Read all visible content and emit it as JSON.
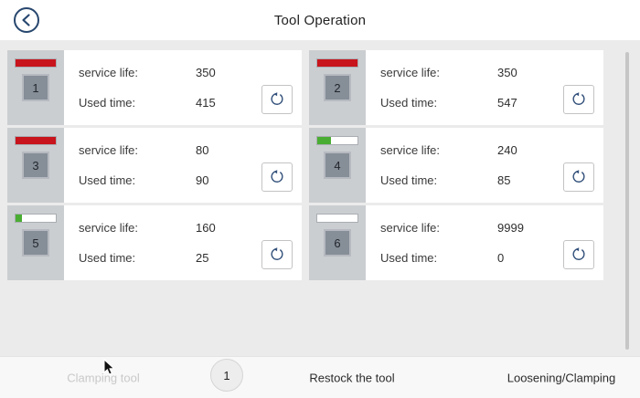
{
  "header": {
    "title": "Tool Operation"
  },
  "icons": {
    "back": "chevron-left-circle",
    "reset": "counterclockwise-reset-arrow",
    "cursor": "mouse-pointer-arrow"
  },
  "labels": {
    "service_life": "service life:",
    "used_time": "Used time:"
  },
  "cards": [
    {
      "number": "1",
      "service_life": "350",
      "used_time": "415",
      "bar_percent": 100,
      "bar_color": "#c8141c"
    },
    {
      "number": "2",
      "service_life": "350",
      "used_time": "547",
      "bar_percent": 100,
      "bar_color": "#c8141c"
    },
    {
      "number": "3",
      "service_life": "80",
      "used_time": "90",
      "bar_percent": 100,
      "bar_color": "#c8141c"
    },
    {
      "number": "4",
      "service_life": "240",
      "used_time": "85",
      "bar_percent": 35,
      "bar_color": "#4aad33"
    },
    {
      "number": "5",
      "service_life": "160",
      "used_time": "25",
      "bar_percent": 16,
      "bar_color": "#4aad33"
    },
    {
      "number": "6",
      "service_life": "9999",
      "used_time": "0",
      "bar_percent": 0,
      "bar_color": "#4aad33"
    }
  ],
  "bottom_bar": {
    "clamping_tool": "Clamping tool",
    "page_indicator": "1",
    "restock_tool": "Restock the tool",
    "loosening_clamping": "Loosening/Clamping"
  },
  "colors": {
    "accent_navy": "#27476e",
    "bar_red": "#c8141c",
    "bar_green": "#4aad33",
    "content_bg": "#ebebeb",
    "disabled_text": "#c9c9c9"
  }
}
